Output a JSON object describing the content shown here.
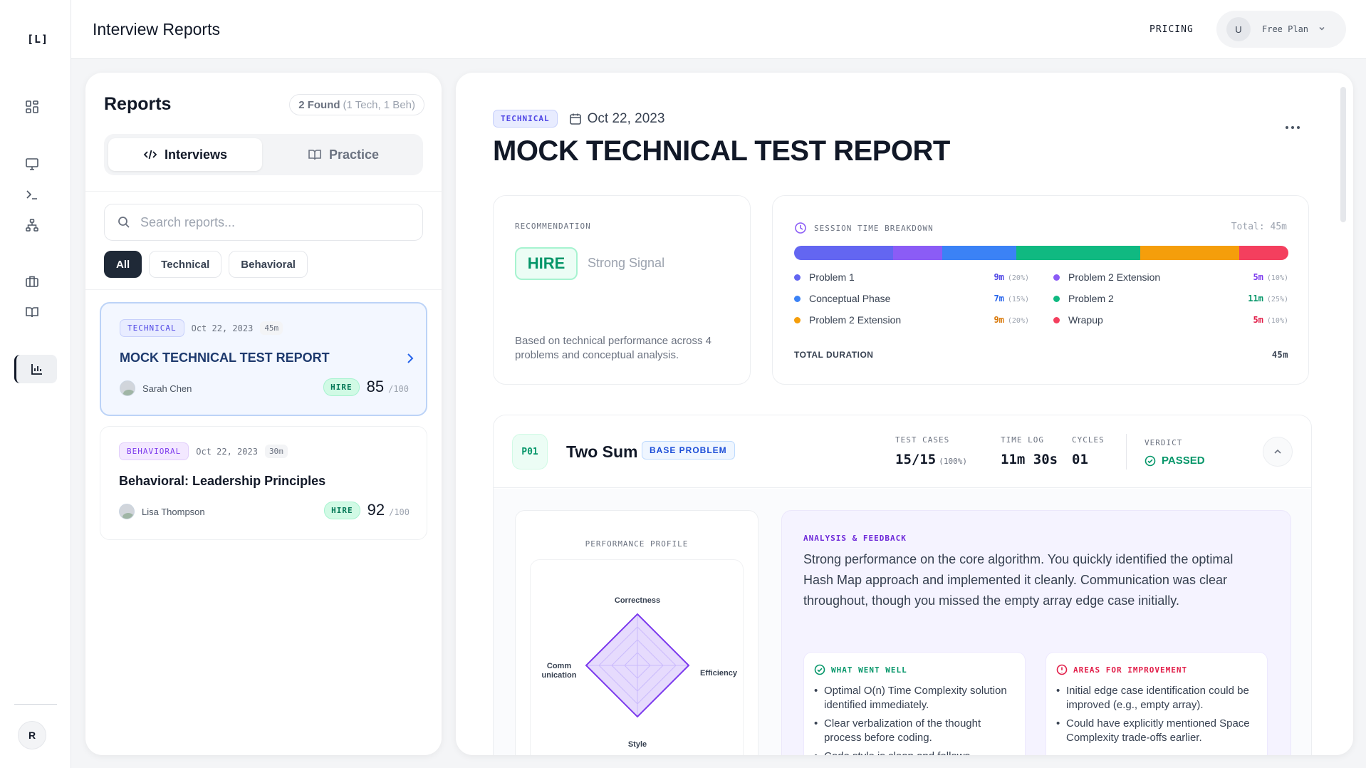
{
  "rail": {
    "logo": "[L]",
    "user_initial": "R"
  },
  "topbar": {
    "title": "Interview Reports",
    "pricing": "PRICING",
    "avatar": "U",
    "plan": "Free Plan"
  },
  "reports": {
    "title": "Reports",
    "found_count": "2 Found",
    "found_detail": "(1 Tech, 1 Beh)",
    "tabs": [
      {
        "label": "Interviews"
      },
      {
        "label": "Practice"
      }
    ],
    "search_placeholder": "Search reports...",
    "filters": [
      "All",
      "Technical",
      "Behavioral"
    ],
    "items": [
      {
        "tag": "TECHNICAL",
        "date": "Oct 22, 2023",
        "duration": "45m",
        "title": "MOCK TECHNICAL TEST REPORT",
        "candidate": "Sarah Chen",
        "verdict": "HIRE",
        "score": "85",
        "score_max": "/100"
      },
      {
        "tag": "BEHAVIORAL",
        "date": "Oct 22, 2023",
        "duration": "30m",
        "title": "Behavioral: Leadership Principles",
        "candidate": "Lisa Thompson",
        "verdict": "HIRE",
        "score": "92",
        "score_max": "/100"
      }
    ]
  },
  "report": {
    "tag": "TECHNICAL",
    "date": "Oct 22, 2023",
    "title": "MOCK TECHNICAL TEST REPORT",
    "recommendation": {
      "label": "RECOMMENDATION",
      "verdict": "HIRE",
      "signal": "Strong Signal",
      "description": "Based on technical performance across 4 problems and conceptual analysis."
    },
    "time": {
      "label": "SESSION TIME BREAKDOWN",
      "total": "Total: 45m",
      "segments": [
        {
          "name": "Problem 1",
          "value": "9m",
          "pct": "(20%)",
          "fraction": 0.2,
          "color": "#6366f1"
        },
        {
          "name": "Problem 2 Extension",
          "value": "5m",
          "pct": "(10%)",
          "fraction": 0.1,
          "color": "#8b5cf6"
        },
        {
          "name": "Conceptual Phase",
          "value": "7m",
          "pct": "(15%)",
          "fraction": 0.15,
          "color": "#3b82f6"
        },
        {
          "name": "Problem 2",
          "value": "11m",
          "pct": "(25%)",
          "fraction": 0.25,
          "color": "#10b981"
        },
        {
          "name": "Problem 2 Extension",
          "value": "9m",
          "pct": "(20%)",
          "fraction": 0.2,
          "color": "#f59e0b"
        },
        {
          "name": "Wrapup",
          "value": "5m",
          "pct": "(10%)",
          "fraction": 0.1,
          "color": "#f43f5e"
        }
      ],
      "total_label": "TOTAL DURATION",
      "total_value": "45m"
    },
    "problem": {
      "id": "P01",
      "name": "Two Sum",
      "badge": "BASE PROBLEM",
      "test_cases_label": "TEST CASES",
      "test_cases": "15/15",
      "test_cases_pct": "(100%)",
      "time_label": "TIME LOG",
      "time": "11m 30s",
      "cycles_label": "CYCLES",
      "cycles": "01",
      "verdict_label": "VERDICT",
      "verdict": "PASSED",
      "perf_label": "PERFORMANCE PROFILE",
      "radar": {
        "axes": [
          "Correctness",
          "Efficiency",
          "Style",
          "Comm\nunication"
        ],
        "values": [
          1.0,
          1.0,
          1.0,
          1.0
        ]
      },
      "analysis_label": "ANALYSIS & FEEDBACK",
      "analysis": "Strong performance on the core algorithm. You quickly identified the optimal Hash Map approach and implemented it cleanly. Communication was clear throughout, though you missed the empty array edge case initially.",
      "well_label": "WHAT WENT WELL",
      "well": [
        "Optimal O(n) Time Complexity solution identified immediately.",
        "Clear verbalization of the thought process before coding.",
        "Code style is clean and follows"
      ],
      "improve_label": "AREAS FOR IMPROVEMENT",
      "improve": [
        "Initial edge case identification could be improved (e.g., empty array).",
        "Could have explicitly mentioned Space Complexity trade-offs earlier."
      ]
    }
  }
}
